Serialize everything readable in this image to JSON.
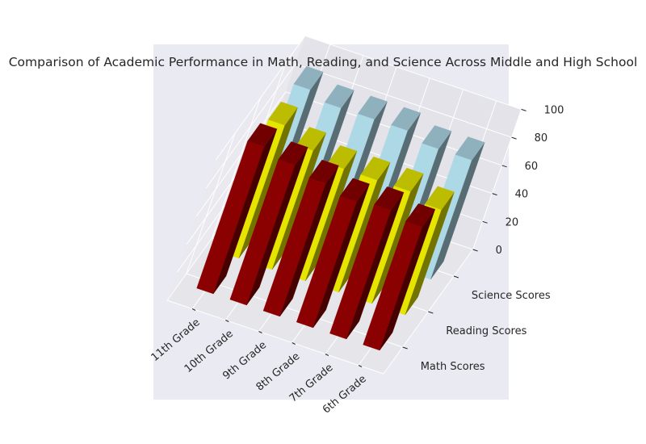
{
  "chart_data": {
    "type": "bar",
    "projection": "3d",
    "title": "Comparison of Academic Performance in Math, Reading, and Science Across Middle and High School",
    "categories": [
      "6th Grade",
      "7th Grade",
      "8th Grade",
      "9th Grade",
      "10th Grade",
      "11th Grade"
    ],
    "series": [
      {
        "name": "Math Scores",
        "values": [
          88,
          92,
          90,
          95,
          100,
          105
        ],
        "color": "#8b0000"
      },
      {
        "name": "Reading Scores",
        "values": [
          75,
          80,
          80,
          80,
          85,
          95
        ],
        "color": "#e5e500"
      },
      {
        "name": "Science Scores",
        "values": [
          85,
          85,
          90,
          90,
          90,
          95
        ],
        "color": "#add8e6"
      }
    ],
    "zlim": [
      0,
      100
    ],
    "zticks": [
      0,
      20,
      40,
      60,
      80,
      100
    ],
    "grid": true,
    "legend": "none",
    "pane_color": "#eaeaf2"
  }
}
